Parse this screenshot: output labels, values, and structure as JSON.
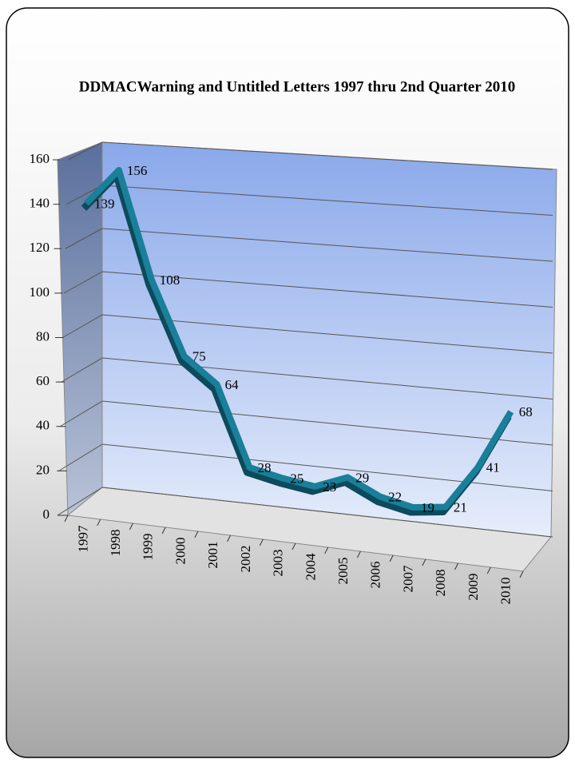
{
  "chart_data": {
    "type": "line",
    "title": "DDMACWarning and Untitled Letters 1997 thru 2nd Quarter 2010",
    "categories": [
      "1997",
      "1998",
      "1999",
      "2000",
      "2001",
      "2002",
      "2003",
      "2004",
      "2005",
      "2006",
      "2007",
      "2008",
      "2009",
      "2010"
    ],
    "values": [
      139,
      156,
      108,
      75,
      64,
      28,
      25,
      23,
      29,
      22,
      19,
      21,
      41,
      68
    ],
    "color": "#1a7f99",
    "ylim": [
      0,
      160
    ],
    "yticks": [
      0,
      20,
      40,
      60,
      80,
      100,
      120,
      140,
      160
    ],
    "grid": true
  }
}
